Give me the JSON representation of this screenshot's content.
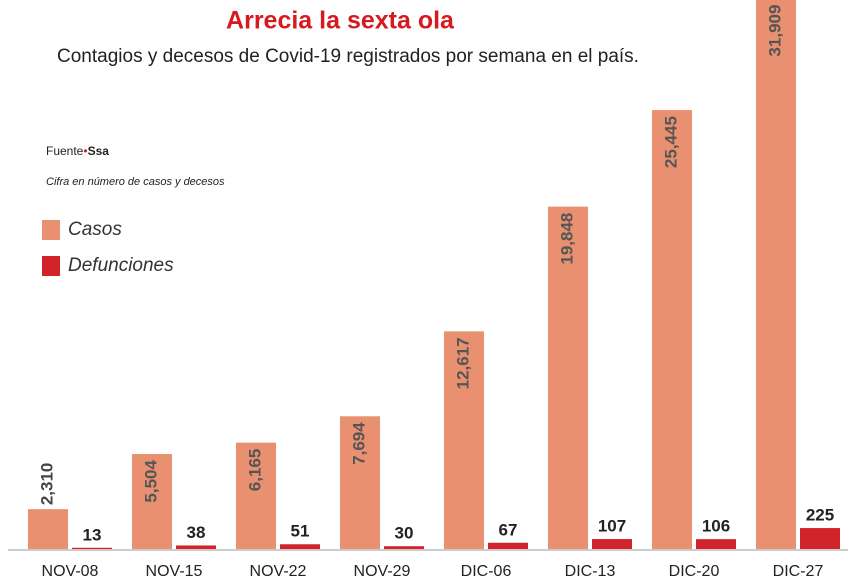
{
  "chart_data": {
    "type": "bar",
    "title": "Arrecia la sexta ola",
    "subtitle": "Contagios y decesos de Covid-19 registrados por semana en el país.",
    "source_label": "Fuente",
    "source": "Ssa",
    "note": "Cifra en número de casos y decesos",
    "categories": [
      "NOV-08",
      "NOV-15",
      "NOV-22",
      "NOV-29",
      "DIC-06",
      "DIC-13",
      "DIC-20",
      "DIC-27"
    ],
    "series": [
      {
        "name": "Casos",
        "color": "#e8906f",
        "values": [
          2310,
          5504,
          6165,
          7694,
          12617,
          19848,
          25445,
          31909
        ],
        "value_labels": [
          "2,310",
          "5,504",
          "6,165",
          "7,694",
          "12,617",
          "19,848",
          "25,445",
          "31,909"
        ]
      },
      {
        "name": "Defunciones",
        "color": "#d2232a",
        "values": [
          13,
          38,
          51,
          30,
          67,
          107,
          106,
          225
        ]
      }
    ]
  }
}
